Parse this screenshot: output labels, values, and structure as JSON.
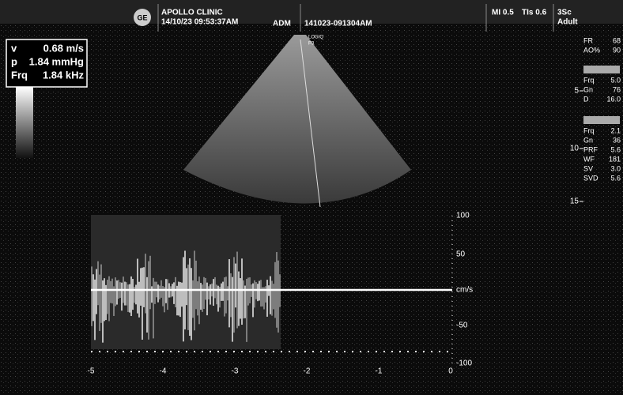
{
  "header": {
    "logo": "GE",
    "clinic": "APOLLO CLINIC",
    "datetime": "14/10/23 09:53:37AM",
    "operator": "ADM",
    "exam_id": "141023-091304AM",
    "mi": "MI 0.5",
    "tis": "TIs 0.6",
    "probe": "3Sc",
    "preset": "Adult"
  },
  "probe_label": [
    "LOGIQ",
    "P3"
  ],
  "measurements": [
    {
      "label": "v",
      "value": "0.68 m/s"
    },
    {
      "label": "p",
      "value": "1.84 mmHg"
    },
    {
      "label": "Frq",
      "value": "1.84 kHz"
    }
  ],
  "params": {
    "general": [
      [
        "FR",
        "68"
      ],
      [
        "AO%",
        "90"
      ]
    ],
    "b_mode": [
      [
        "Frq",
        "5.0"
      ],
      [
        "Gn",
        "76"
      ],
      [
        "D",
        "16.0"
      ]
    ],
    "pw": [
      [
        "Frq",
        "2.1"
      ],
      [
        "Gn",
        "36"
      ],
      [
        "PRF",
        "5.6"
      ],
      [
        "WF",
        "181"
      ],
      [
        "SV",
        "3.0"
      ],
      [
        "SVD",
        "5.6"
      ]
    ]
  },
  "depth_marks": [
    "5",
    "10",
    "15"
  ],
  "doppler": {
    "scale": [
      "100",
      "50",
      "cm/s",
      "-50",
      "-100"
    ],
    "time_axis": [
      "-5",
      "-4",
      "-3",
      "-2",
      "-1",
      "0"
    ]
  }
}
